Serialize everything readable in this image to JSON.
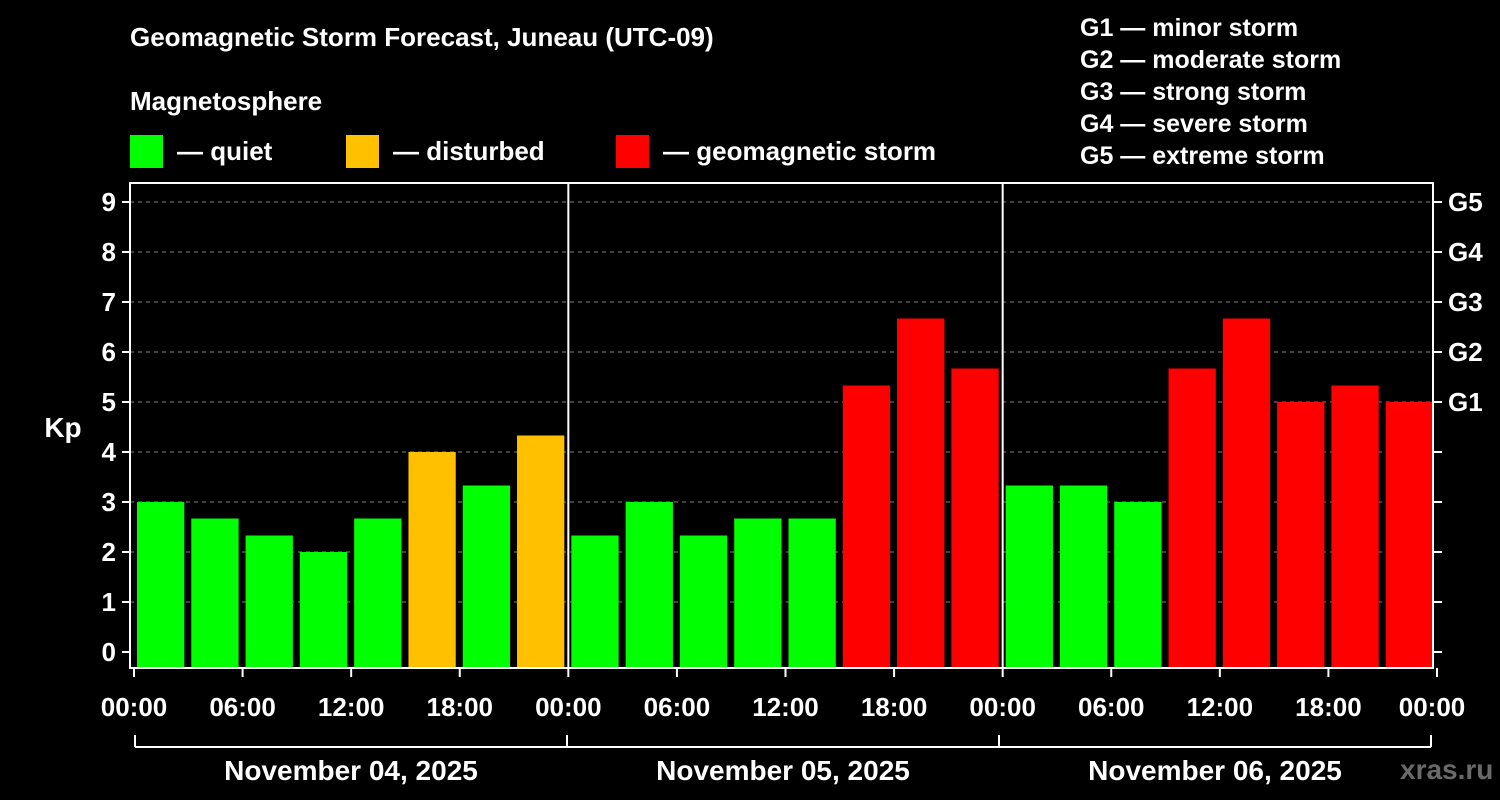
{
  "title": "Geomagnetic Storm Forecast, Juneau (UTC-09)",
  "subtitle": "Magnetosphere",
  "legend": [
    {
      "label": "— quiet",
      "color": "#00ff00"
    },
    {
      "label": "— disturbed",
      "color": "#ffc000"
    },
    {
      "label": "— geomagnetic storm",
      "color": "#ff0000"
    }
  ],
  "storm_scale": [
    "G1 — minor storm",
    "G2 — moderate storm",
    "G3 — strong storm",
    "G4 — severe storm",
    "G5 — extreme storm"
  ],
  "watermark": "xras.ru",
  "colors": {
    "quiet": "#00ff00",
    "disturbed": "#ffc000",
    "storm": "#ff0000",
    "axis": "#ffffff",
    "grid": "#808080",
    "background": "#000000"
  },
  "chart_data": {
    "type": "bar",
    "ylabel": "Kp",
    "ylim": [
      0,
      9
    ],
    "yticks": [
      "0",
      "1",
      "2",
      "3",
      "4",
      "5",
      "6",
      "7",
      "8",
      "9"
    ],
    "right_axis": [
      {
        "kp": 5,
        "label": "G1"
      },
      {
        "kp": 6,
        "label": "G2"
      },
      {
        "kp": 7,
        "label": "G3"
      },
      {
        "kp": 8,
        "label": "G4"
      },
      {
        "kp": 9,
        "label": "G5"
      }
    ],
    "time_labels": [
      "00:00",
      "06:00",
      "12:00",
      "18:00",
      "00:00",
      "06:00",
      "12:00",
      "18:00",
      "00:00",
      "06:00",
      "12:00",
      "18:00",
      "00:00"
    ],
    "days": [
      "November 04, 2025",
      "November 05, 2025",
      "November 06, 2025"
    ],
    "grid": true,
    "values": [
      3.0,
      2.67,
      2.33,
      2.0,
      2.67,
      4.0,
      3.33,
      4.33,
      2.33,
      3.0,
      2.33,
      2.67,
      2.67,
      5.33,
      6.67,
      5.67,
      3.33,
      3.33,
      3.0,
      5.67,
      6.67,
      5.0,
      5.33,
      5.0
    ],
    "levels": [
      "quiet",
      "quiet",
      "quiet",
      "quiet",
      "quiet",
      "disturbed",
      "quiet",
      "disturbed",
      "quiet",
      "quiet",
      "quiet",
      "quiet",
      "quiet",
      "storm",
      "storm",
      "storm",
      "quiet",
      "quiet",
      "quiet",
      "storm",
      "storm",
      "storm",
      "storm",
      "storm"
    ]
  }
}
